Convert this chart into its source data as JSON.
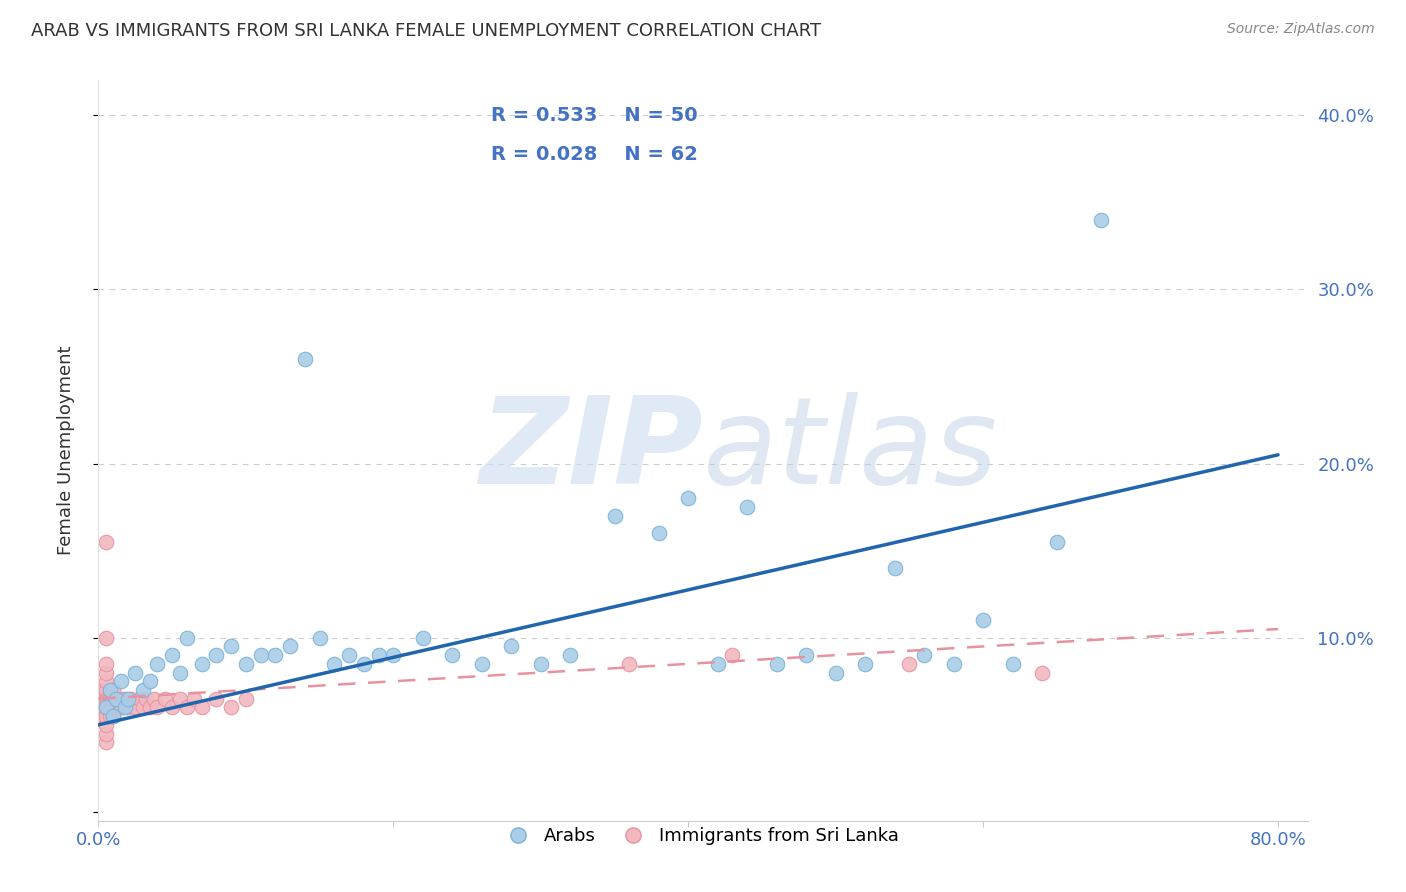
{
  "title": "ARAB VS IMMIGRANTS FROM SRI LANKA FEMALE UNEMPLOYMENT CORRELATION CHART",
  "source": "Source: ZipAtlas.com",
  "ylabel": "Female Unemployment",
  "watermark_zip": "ZIP",
  "watermark_atlas": "atlas",
  "xlim": [
    0.0,
    0.82
  ],
  "ylim": [
    -0.005,
    0.42
  ],
  "arab_color_edge": "#7ab3d9",
  "arab_color_face": "#aacde8",
  "srilanka_color_edge": "#e8929e",
  "srilanka_color_face": "#f2b8c0",
  "arab_line_color": "#2166ac",
  "srilanka_line_color": "#e8929e",
  "background_color": "#ffffff",
  "grid_color": "#cccccc",
  "title_color": "#333333",
  "tick_label_color": "#4472c4",
  "legend_text_color": "#4472c4",
  "arab_x": [
    0.005,
    0.008,
    0.01,
    0.012,
    0.015,
    0.018,
    0.02,
    0.025,
    0.03,
    0.035,
    0.04,
    0.05,
    0.055,
    0.06,
    0.07,
    0.08,
    0.09,
    0.1,
    0.11,
    0.12,
    0.13,
    0.14,
    0.15,
    0.16,
    0.17,
    0.18,
    0.19,
    0.2,
    0.22,
    0.24,
    0.26,
    0.28,
    0.3,
    0.32,
    0.35,
    0.38,
    0.4,
    0.42,
    0.44,
    0.46,
    0.48,
    0.5,
    0.52,
    0.54,
    0.56,
    0.58,
    0.6,
    0.62,
    0.65,
    0.68
  ],
  "arab_y": [
    0.06,
    0.07,
    0.055,
    0.065,
    0.075,
    0.06,
    0.065,
    0.08,
    0.07,
    0.075,
    0.085,
    0.09,
    0.08,
    0.1,
    0.085,
    0.09,
    0.095,
    0.085,
    0.09,
    0.09,
    0.095,
    0.26,
    0.1,
    0.085,
    0.09,
    0.085,
    0.09,
    0.09,
    0.1,
    0.09,
    0.085,
    0.095,
    0.085,
    0.09,
    0.17,
    0.16,
    0.18,
    0.085,
    0.175,
    0.085,
    0.09,
    0.08,
    0.085,
    0.14,
    0.09,
    0.085,
    0.11,
    0.085,
    0.155,
    0.34
  ],
  "sri_x": [
    0.002,
    0.002,
    0.002,
    0.003,
    0.003,
    0.003,
    0.003,
    0.004,
    0.004,
    0.004,
    0.005,
    0.005,
    0.005,
    0.005,
    0.005,
    0.005,
    0.005,
    0.005,
    0.005,
    0.005,
    0.006,
    0.006,
    0.007,
    0.007,
    0.008,
    0.008,
    0.009,
    0.009,
    0.01,
    0.01,
    0.01,
    0.01,
    0.012,
    0.012,
    0.014,
    0.015,
    0.016,
    0.018,
    0.02,
    0.022,
    0.025,
    0.028,
    0.03,
    0.032,
    0.035,
    0.038,
    0.04,
    0.045,
    0.05,
    0.055,
    0.06,
    0.065,
    0.07,
    0.08,
    0.09,
    0.1,
    0.36,
    0.43,
    0.55,
    0.64,
    0.005,
    0.005
  ],
  "sri_y": [
    0.06,
    0.065,
    0.07,
    0.055,
    0.06,
    0.065,
    0.07,
    0.055,
    0.06,
    0.065,
    0.04,
    0.045,
    0.05,
    0.055,
    0.06,
    0.065,
    0.07,
    0.075,
    0.08,
    0.085,
    0.06,
    0.065,
    0.06,
    0.065,
    0.055,
    0.065,
    0.06,
    0.065,
    0.055,
    0.06,
    0.065,
    0.07,
    0.06,
    0.065,
    0.06,
    0.065,
    0.06,
    0.065,
    0.06,
    0.065,
    0.06,
    0.065,
    0.06,
    0.065,
    0.06,
    0.065,
    0.06,
    0.065,
    0.06,
    0.065,
    0.06,
    0.065,
    0.06,
    0.065,
    0.06,
    0.065,
    0.085,
    0.09,
    0.085,
    0.08,
    0.155,
    0.1
  ],
  "arab_line_x0": 0.0,
  "arab_line_x1": 0.8,
  "arab_line_y0": 0.05,
  "arab_line_y1": 0.205,
  "sri_line_x0": 0.0,
  "sri_line_x1": 0.8,
  "sri_line_y0": 0.065,
  "sri_line_y1": 0.105
}
